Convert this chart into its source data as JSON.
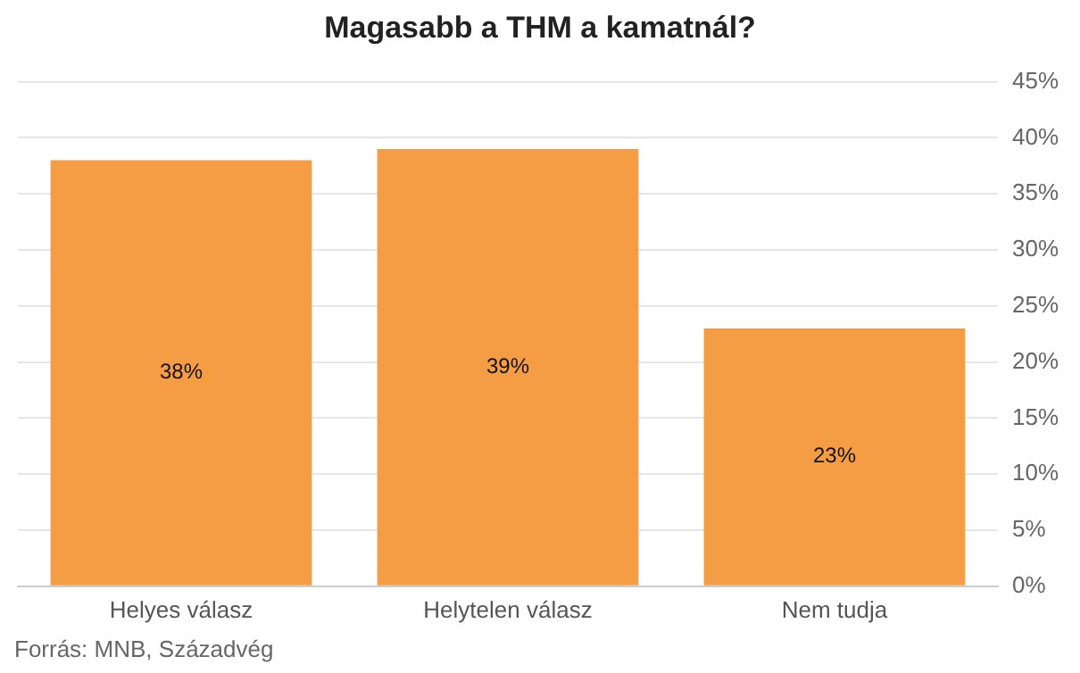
{
  "chart_data": {
    "type": "bar",
    "title": "Magasabb a THM a kamatnál?",
    "categories": [
      "Helyes válasz",
      "Helytelen válasz",
      "Nem tudja"
    ],
    "values": [
      38,
      39,
      23
    ],
    "color": "#f59d45",
    "ylim": [
      0,
      45
    ],
    "yticks": [
      {
        "value": 0,
        "label": "0%"
      },
      {
        "value": 5,
        "label": "5%"
      },
      {
        "value": 10,
        "label": "10%"
      },
      {
        "value": 15,
        "label": "15%"
      },
      {
        "value": 20,
        "label": "20%"
      },
      {
        "value": 25,
        "label": "25%"
      },
      {
        "value": 30,
        "label": "30%"
      },
      {
        "value": 35,
        "label": "35%"
      },
      {
        "value": 40,
        "label": "40%"
      },
      {
        "value": 45,
        "label": "45%"
      }
    ],
    "value_labels": [
      "38%",
      "39%",
      "23%"
    ],
    "grid": "y",
    "annotations": [
      "Forrás: MNB, Századvég"
    ]
  }
}
